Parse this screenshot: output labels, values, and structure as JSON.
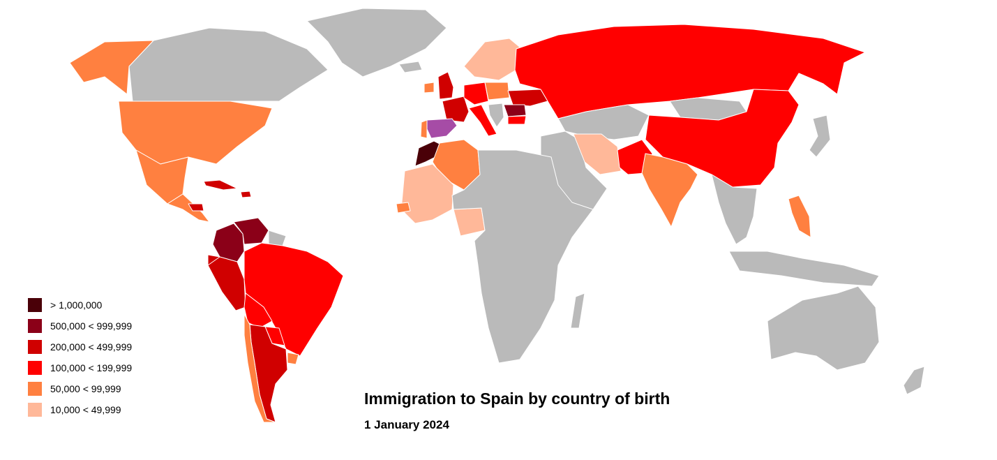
{
  "title": "Immigration to Spain by country of birth",
  "subtitle": "1 January 2024",
  "legend": {
    "items": [
      {
        "label": "> 1,000,000",
        "color": "#4a0008"
      },
      {
        "label": "500,000 < 999,999",
        "color": "#8b0018"
      },
      {
        "label": "200,000 < 499,999",
        "color": "#d00000"
      },
      {
        "label": "100,000 < 199,999",
        "color": "#ff0000"
      },
      {
        "label": "50,000 < 99,999",
        "color": "#ff8040"
      },
      {
        "label": "10,000 < 49,999",
        "color": "#ffb899"
      }
    ]
  },
  "colors": {
    "no_data": "#bababa",
    "spain": "#a64ca6",
    "tier_1": "#4a0008",
    "tier_2": "#8b0018",
    "tier_3": "#d00000",
    "tier_4": "#ff0000",
    "tier_5": "#ff8040",
    "tier_6": "#ffb899"
  },
  "regions": [
    {
      "id": "greenland",
      "tier": "no_data"
    },
    {
      "id": "canada",
      "tier": "no_data"
    },
    {
      "id": "alaska",
      "tier": "tier_5"
    },
    {
      "id": "usa",
      "tier": "tier_5"
    },
    {
      "id": "mexico",
      "tier": "tier_5"
    },
    {
      "id": "cuba",
      "tier": "tier_3"
    },
    {
      "id": "dominican-republic",
      "tier": "tier_3"
    },
    {
      "id": "central-america",
      "tier": "tier_5"
    },
    {
      "id": "honduras",
      "tier": "tier_3"
    },
    {
      "id": "colombia",
      "tier": "tier_2"
    },
    {
      "id": "venezuela",
      "tier": "tier_2"
    },
    {
      "id": "guianas",
      "tier": "no_data"
    },
    {
      "id": "ecuador",
      "tier": "tier_3"
    },
    {
      "id": "peru",
      "tier": "tier_3"
    },
    {
      "id": "brazil",
      "tier": "tier_4"
    },
    {
      "id": "bolivia",
      "tier": "tier_4"
    },
    {
      "id": "paraguay",
      "tier": "tier_4"
    },
    {
      "id": "argentina",
      "tier": "tier_3"
    },
    {
      "id": "chile",
      "tier": "tier_5"
    },
    {
      "id": "uruguay",
      "tier": "tier_5"
    },
    {
      "id": "spain",
      "tier": "spain"
    },
    {
      "id": "portugal",
      "tier": "tier_5"
    },
    {
      "id": "france",
      "tier": "tier_3"
    },
    {
      "id": "uk",
      "tier": "tier_3"
    },
    {
      "id": "ireland",
      "tier": "tier_5"
    },
    {
      "id": "germany",
      "tier": "tier_4"
    },
    {
      "id": "italy",
      "tier": "tier_4"
    },
    {
      "id": "nordics",
      "tier": "tier_6"
    },
    {
      "id": "poland",
      "tier": "tier_5"
    },
    {
      "id": "ukraine",
      "tier": "tier_3"
    },
    {
      "id": "romania",
      "tier": "tier_2"
    },
    {
      "id": "bulgaria",
      "tier": "tier_4"
    },
    {
      "id": "russia",
      "tier": "tier_4"
    },
    {
      "id": "morocco",
      "tier": "tier_1"
    },
    {
      "id": "algeria",
      "tier": "tier_5"
    },
    {
      "id": "west-africa",
      "tier": "tier_6"
    },
    {
      "id": "senegal",
      "tier": "tier_5"
    },
    {
      "id": "nigeria",
      "tier": "tier_6"
    },
    {
      "id": "africa-rest",
      "tier": "no_data"
    },
    {
      "id": "madagascar",
      "tier": "no_data"
    },
    {
      "id": "middle-east",
      "tier": "no_data"
    },
    {
      "id": "iran",
      "tier": "tier_6"
    },
    {
      "id": "central-asia",
      "tier": "no_data"
    },
    {
      "id": "pakistan",
      "tier": "tier_4"
    },
    {
      "id": "india",
      "tier": "tier_5"
    },
    {
      "id": "china",
      "tier": "tier_4"
    },
    {
      "id": "mongolia",
      "tier": "no_data"
    },
    {
      "id": "southeast-asia",
      "tier": "no_data"
    },
    {
      "id": "philippines",
      "tier": "tier_5"
    },
    {
      "id": "indonesia",
      "tier": "no_data"
    },
    {
      "id": "japan",
      "tier": "no_data"
    },
    {
      "id": "australia",
      "tier": "no_data"
    },
    {
      "id": "new-zealand",
      "tier": "no_data"
    }
  ]
}
